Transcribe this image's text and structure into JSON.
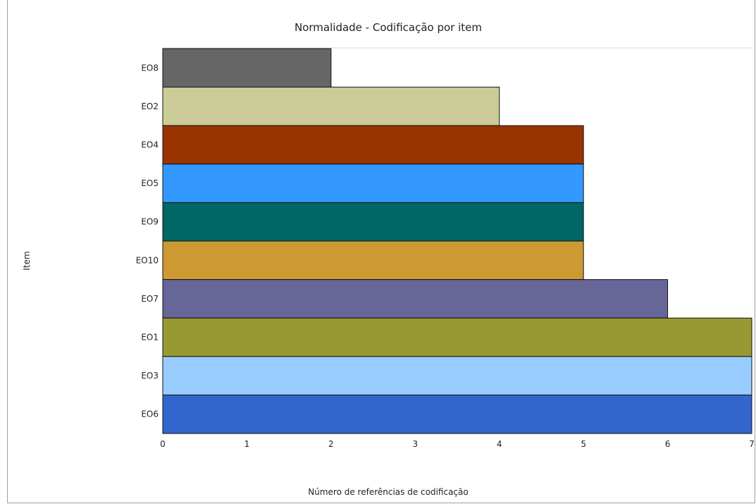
{
  "chart_data": {
    "type": "bar",
    "orientation": "horizontal",
    "title": "Normalidade - Codificação por item",
    "xlabel": "Número de referências de codificação",
    "ylabel": "Item",
    "xlim": [
      0,
      7
    ],
    "x_ticks": [
      "0",
      "1",
      "2",
      "3",
      "4",
      "5",
      "6",
      "7"
    ],
    "grid": false,
    "categories": [
      "EO8",
      "EO2",
      "EO4",
      "EO5",
      "EO9",
      "EO10",
      "EO7",
      "EO1",
      "EO3",
      "EO6"
    ],
    "values": [
      2,
      4,
      5,
      5,
      5,
      5,
      6,
      7,
      7,
      7
    ],
    "colors": [
      "#666666",
      "#cccc99",
      "#993300",
      "#3399ff",
      "#006666",
      "#cc9933",
      "#666699",
      "#999933",
      "#99ccff",
      "#3366cc"
    ]
  }
}
